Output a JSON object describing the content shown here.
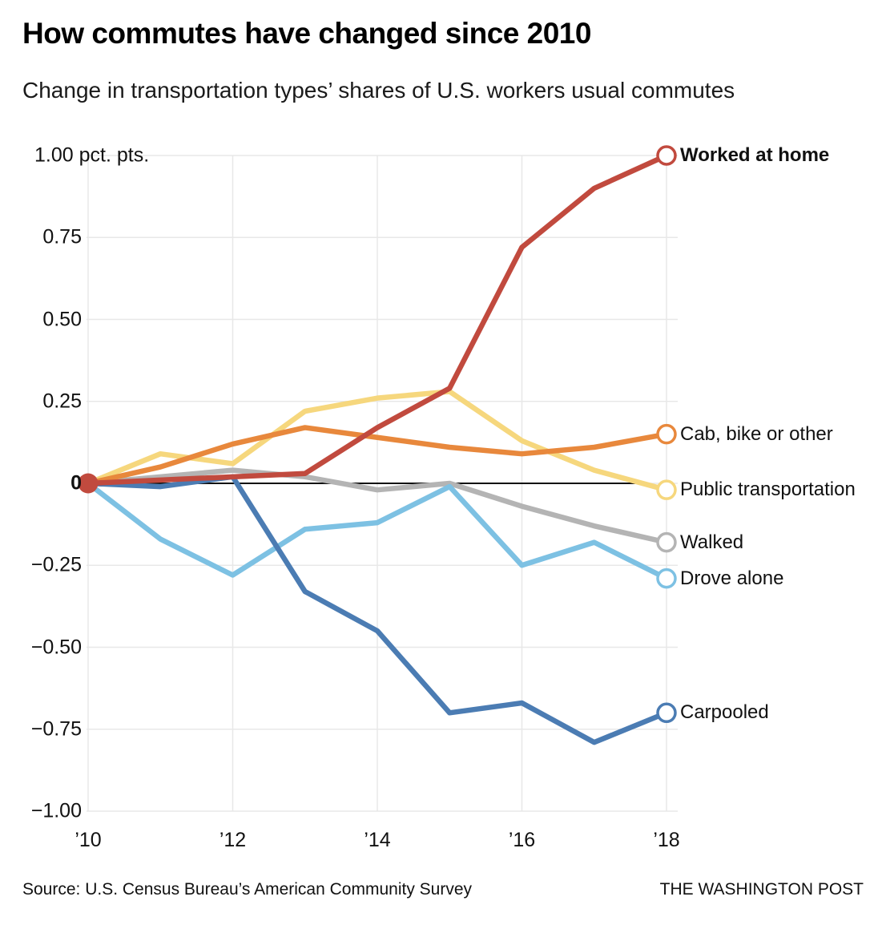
{
  "header": {
    "title": "How commutes have changed since 2010",
    "subtitle": "Change in transportation types’ shares of U.S. workers usual commutes"
  },
  "chart_data": {
    "type": "line",
    "unit": "percentage points",
    "x": [
      2010,
      2011,
      2012,
      2013,
      2014,
      2015,
      2016,
      2017,
      2018
    ],
    "xlim": [
      2010,
      2018
    ],
    "ylim": [
      -1.0,
      1.0
    ],
    "grid": true,
    "zero_line": true,
    "legend_position": "right",
    "xticks": [
      {
        "label": "’10",
        "value": 2010
      },
      {
        "label": "’12",
        "value": 2012
      },
      {
        "label": "’14",
        "value": 2014
      },
      {
        "label": "’16",
        "value": 2016
      },
      {
        "label": "’18",
        "value": 2018
      }
    ],
    "yticks": [
      {
        "label": "1.00 pct. pts.",
        "value": 1.0
      },
      {
        "label": "0.75",
        "value": 0.75
      },
      {
        "label": "0.50",
        "value": 0.5
      },
      {
        "label": "0.25",
        "value": 0.25
      },
      {
        "label": "0",
        "value": 0,
        "bold": true
      },
      {
        "label": "−0.25",
        "value": -0.25
      },
      {
        "label": "−0.50",
        "value": -0.5
      },
      {
        "label": "−0.75",
        "value": -0.75
      },
      {
        "label": "−1.00",
        "value": -1.0
      }
    ],
    "series": [
      {
        "name": "Walked",
        "color": "#b4b4b4",
        "values": [
          0,
          0.02,
          0.04,
          0.02,
          -0.02,
          0,
          -0.07,
          -0.13,
          -0.18
        ]
      },
      {
        "name": "Drove alone",
        "color": "#7dc1e3",
        "values": [
          0,
          -0.17,
          -0.28,
          -0.14,
          -0.12,
          -0.01,
          -0.25,
          -0.18,
          -0.29
        ]
      },
      {
        "name": "Public transportation",
        "color": "#f6d77d",
        "values": [
          0,
          0.09,
          0.06,
          0.22,
          0.26,
          0.28,
          0.13,
          0.04,
          -0.02
        ]
      },
      {
        "name": "Cab, bike or other",
        "color": "#e8883c",
        "values": [
          0,
          0.05,
          0.12,
          0.17,
          0.14,
          0.11,
          0.09,
          0.11,
          0.15
        ]
      },
      {
        "name": "Carpooled",
        "color": "#4b7cb3",
        "values": [
          0,
          -0.01,
          0.02,
          -0.33,
          -0.45,
          -0.7,
          -0.67,
          -0.79,
          -0.7
        ]
      },
      {
        "name": "Worked at home",
        "color": "#c14a3e",
        "legend_bold": true,
        "values": [
          0,
          0.01,
          0.02,
          0.03,
          0.17,
          0.29,
          0.72,
          0.9,
          1.0
        ]
      }
    ],
    "origin_dot": {
      "x": 2010,
      "value": 0,
      "color": "#c14a3e"
    }
  },
  "footer": {
    "source": "Source: U.S. Census Bureau’s American Community Survey",
    "credit": "THE WASHINGTON POST"
  }
}
